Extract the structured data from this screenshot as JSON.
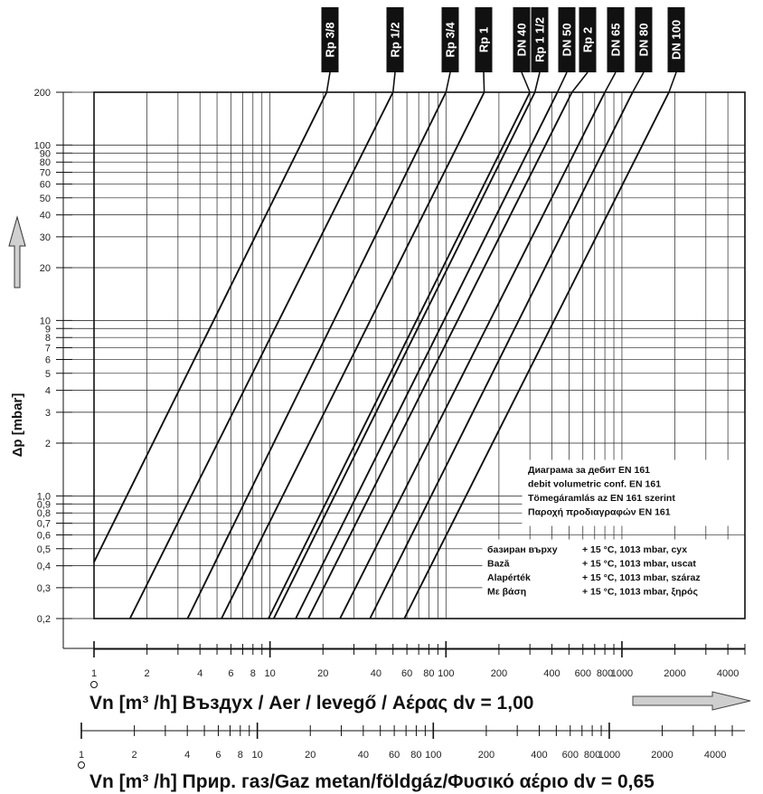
{
  "chart_data": {
    "type": "line",
    "scale": "log-log",
    "ylabel": "Δp [mbar]",
    "ylim": [
      0.2,
      200
    ],
    "xlim": [
      1,
      5000
    ],
    "y_ticks": [
      "200",
      "100",
      "90",
      "80",
      "70",
      "60",
      "50",
      "40",
      "30",
      "20",
      "10",
      "9",
      "8",
      "7",
      "6",
      "5",
      "4",
      "3",
      "2",
      "1,0",
      "0,9",
      "0,8",
      "0,7",
      "0,6",
      "0,5",
      "0,4",
      "0,3",
      "0,2"
    ],
    "y_tick_values": [
      200,
      100,
      90,
      80,
      70,
      60,
      50,
      40,
      30,
      20,
      10,
      9,
      8,
      7,
      6,
      5,
      4,
      3,
      2,
      1,
      0.9,
      0.8,
      0.7,
      0.6,
      0.5,
      0.4,
      0.3,
      0.2
    ],
    "x_axis_air": {
      "title": "Vn [m³ /h] Въздух / Aer / levegő / Αέρας dv = 1,00",
      "ticks": [
        "1",
        "2",
        "4",
        "6",
        "8",
        "10",
        "20",
        "40",
        "60",
        "80",
        "100",
        "200",
        "400",
        "600",
        "800",
        "1000",
        "2000",
        "4000"
      ],
      "tick_values": [
        1,
        2,
        4,
        6,
        8,
        10,
        20,
        40,
        60,
        80,
        100,
        200,
        400,
        600,
        800,
        1000,
        2000,
        4000
      ]
    },
    "x_axis_gas": {
      "title": "Vn [m³ /h] Прир. газ/Gaz metan/földgáz/Φυσικό αέριο dv = 0,65",
      "ticks": [
        "1",
        "2",
        "4",
        "6",
        "8",
        "10",
        "20",
        "40",
        "60",
        "80",
        "100",
        "200",
        "400",
        "600",
        "800",
        "1000",
        "2000",
        "4000"
      ],
      "tick_values": [
        1,
        2,
        4,
        6,
        8,
        10,
        20,
        40,
        60,
        80,
        100,
        200,
        400,
        600,
        800,
        1000,
        2000,
        4000
      ]
    },
    "series": [
      {
        "name": "Rp 3/8",
        "points": [
          [
            1,
            0.42
          ],
          [
            21,
            200
          ]
        ]
      },
      {
        "name": "Rp 1/2",
        "points": [
          [
            1.6,
            0.2
          ],
          [
            50,
            200
          ]
        ]
      },
      {
        "name": "Rp 3/4",
        "points": [
          [
            3.4,
            0.2
          ],
          [
            100,
            200
          ]
        ]
      },
      {
        "name": "Rp 1",
        "points": [
          [
            5.3,
            0.2
          ],
          [
            165,
            200
          ]
        ]
      },
      {
        "name": "DN 40",
        "points": [
          [
            9.8,
            0.2
          ],
          [
            300,
            200
          ]
        ]
      },
      {
        "name": "Rp 1 1/2",
        "points": [
          [
            10.5,
            0.2
          ],
          [
            320,
            200
          ]
        ]
      },
      {
        "name": "DN 50",
        "points": [
          [
            14,
            0.2
          ],
          [
            430,
            200
          ]
        ]
      },
      {
        "name": "Rp 2",
        "points": [
          [
            16.5,
            0.2
          ],
          [
            520,
            200
          ]
        ]
      },
      {
        "name": "DN 65",
        "points": [
          [
            25,
            0.2
          ],
          [
            800,
            200
          ]
        ]
      },
      {
        "name": "DN 80",
        "points": [
          [
            37,
            0.2
          ],
          [
            1150,
            200
          ]
        ]
      },
      {
        "name": "DN 100",
        "points": [
          [
            58,
            0.2
          ],
          [
            1850,
            200
          ]
        ]
      }
    ],
    "annotations": {
      "box1": [
        "Диаграма за дебит EN 161",
        "debit volumetric conf. EN 161",
        "Tömegáramlás az EN 161 szerint",
        "Παροχή προδιαγραφών EN 161"
      ],
      "box2": [
        [
          "базиран върху",
          "+ 15 °C, 1013 mbar, сух"
        ],
        [
          "Bază",
          "+ 15 °C, 1013 mbar, uscat"
        ],
        [
          "Alapérték",
          "+ 15 °C, 1013 mbar, száraz"
        ],
        [
          "Με βάση",
          "+ 15 °C, 1013 mbar, ξηρός"
        ]
      ]
    },
    "grid": true,
    "legend": "top (labels above plot)"
  },
  "colors": {
    "line": "#111111",
    "grid": "#222222",
    "tag_bg": "#111111",
    "tag_text": "#ffffff",
    "arrow": "#bdbdbd"
  }
}
